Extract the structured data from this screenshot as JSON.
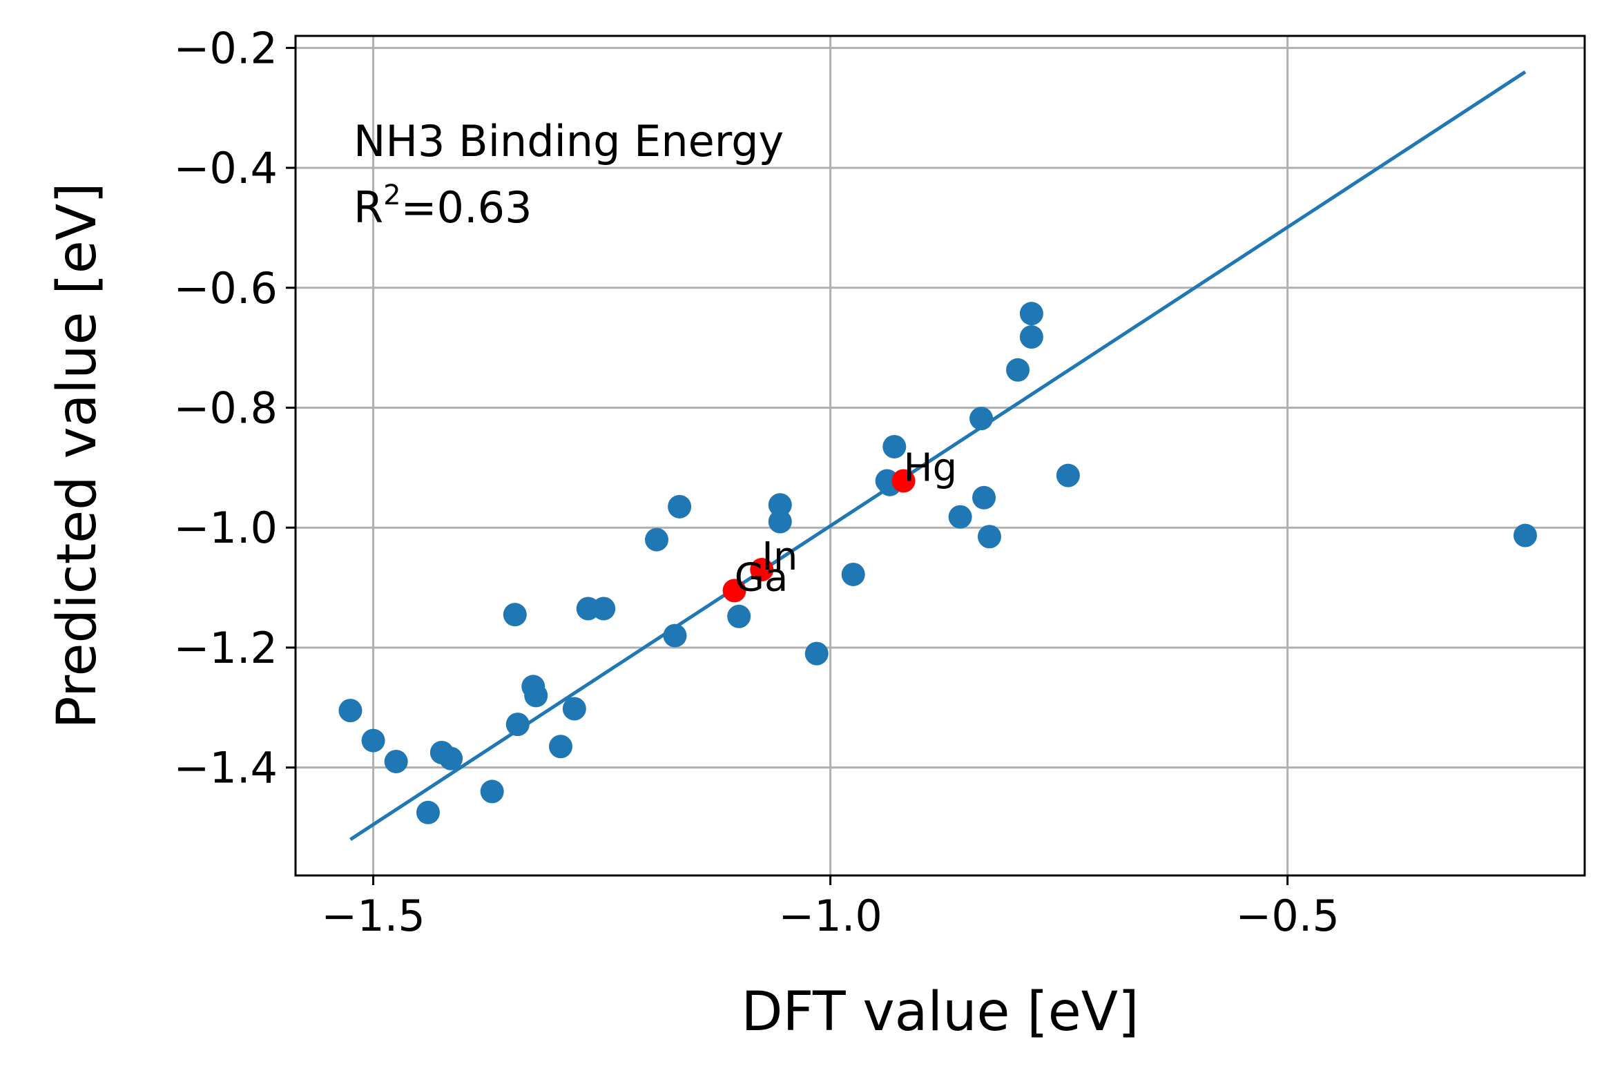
{
  "chart_data": {
    "type": "scatter",
    "title": "",
    "xlabel": "DFT value [eV]",
    "ylabel": "Predicted value [eV]",
    "xlim": [
      -1.585,
      -0.175
    ],
    "ylim": [
      -1.58,
      -0.18
    ],
    "xticks": [
      -1.5,
      -1.0,
      -0.5
    ],
    "xtick_labels": [
      "−1.5",
      "−1.0",
      "−0.5"
    ],
    "yticks": [
      -1.4,
      -1.2,
      -1.0,
      -0.8,
      -0.6,
      -0.4,
      -0.2
    ],
    "ytick_labels": [
      "−1.4",
      "−1.2",
      "−1.0",
      "−0.8",
      "−0.6",
      "−0.4",
      "−0.2"
    ],
    "grid": true,
    "annotation": {
      "line1": "NH3 Binding Energy",
      "r_label": "R",
      "r_sup": "2",
      "r_value": "=0.63"
    },
    "fit_line": {
      "x": [
        -1.525,
        -0.24
      ],
      "y": [
        -1.52,
        -0.24
      ]
    },
    "series": [
      {
        "color": "#1f77b4",
        "points": [
          [
            -1.525,
            -1.305
          ],
          [
            -1.5,
            -1.355
          ],
          [
            -1.475,
            -1.39
          ],
          [
            -1.44,
            -1.475
          ],
          [
            -1.425,
            -1.375
          ],
          [
            -1.415,
            -1.385
          ],
          [
            -1.37,
            -1.44
          ],
          [
            -1.345,
            -1.145
          ],
          [
            -1.342,
            -1.328
          ],
          [
            -1.325,
            -1.265
          ],
          [
            -1.322,
            -1.28
          ],
          [
            -1.295,
            -1.365
          ],
          [
            -1.28,
            -1.302
          ],
          [
            -1.265,
            -1.135
          ],
          [
            -1.248,
            -1.135
          ],
          [
            -1.19,
            -1.02
          ],
          [
            -1.17,
            -1.18
          ],
          [
            -1.165,
            -0.965
          ],
          [
            -1.1,
            -1.148
          ],
          [
            -1.055,
            -0.962
          ],
          [
            -1.055,
            -0.99
          ],
          [
            -1.015,
            -1.21
          ],
          [
            -0.975,
            -1.078
          ],
          [
            -0.93,
            -0.865
          ],
          [
            -0.938,
            -0.922
          ],
          [
            -0.935,
            -0.928
          ],
          [
            -0.858,
            -0.982
          ],
          [
            -0.835,
            -0.818
          ],
          [
            -0.832,
            -0.95
          ],
          [
            -0.826,
            -1.015
          ],
          [
            -0.795,
            -0.737
          ],
          [
            -0.78,
            -0.643
          ],
          [
            -0.78,
            -0.682
          ],
          [
            -0.74,
            -0.913
          ],
          [
            -0.24,
            -1.013
          ]
        ]
      },
      {
        "color": "#ff0000",
        "points": [
          [
            -1.105,
            -1.105
          ],
          [
            -1.075,
            -1.07
          ],
          [
            -0.92,
            -0.922
          ]
        ]
      }
    ],
    "point_labels": [
      {
        "text": "Ga",
        "x": -1.105,
        "y": -1.105
      },
      {
        "text": "In",
        "x": -1.075,
        "y": -1.07
      },
      {
        "text": "Hg",
        "x": -0.92,
        "y": -0.922
      }
    ]
  }
}
